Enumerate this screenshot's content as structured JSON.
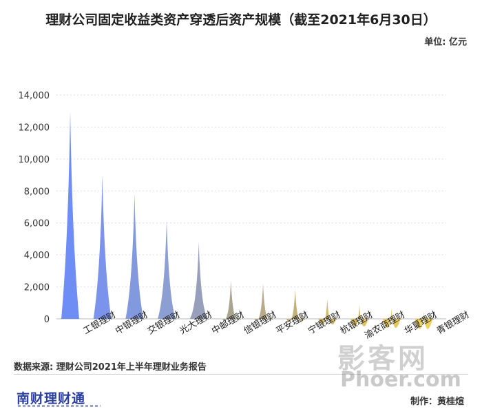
{
  "header": {
    "title": "理财公司固定收益类资产穿透后资产规模（截至2021年6月30日）",
    "unit": "单位: 亿元"
  },
  "footer": {
    "source": "数据来源: 理财公司2021年上半年理财业务报告",
    "logo": "南财理财通",
    "credit": "制作：黄桂煊"
  },
  "watermark": {
    "line1": "影客网",
    "line2": "Phoer.com"
  },
  "chart_data": {
    "type": "bar",
    "title": "理财公司固定收益类资产穿透后资产规模（截至2021年6月30日）",
    "ylabel": "单位: 亿元",
    "ylim": [
      0,
      14000
    ],
    "yticks": [
      "14,000",
      "12,000",
      "10,000",
      "8,000",
      "6,000",
      "4,000",
      "2,000",
      "0"
    ],
    "ytick_values": [
      14000,
      12000,
      10000,
      8000,
      6000,
      4000,
      2000,
      0
    ],
    "grid": true,
    "categories": [
      "工银理财",
      "中银理财",
      "交银理财",
      "光大理财",
      "中邮理财",
      "信银理财",
      "平安理财",
      "宁银理财",
      "杭银理财",
      "渝农商理财",
      "华夏理财",
      "青银理财"
    ],
    "values": [
      13000,
      9000,
      7800,
      6200,
      4800,
      2400,
      2200,
      1850,
      1250,
      900,
      650,
      480
    ],
    "colors": [
      "#6f8ef5",
      "#7b93ea",
      "#8399de",
      "#8d9fd2",
      "#989fbb",
      "#aaa390",
      "#b9ab8a",
      "#c4b079",
      "#d1b96c",
      "#dcc265",
      "#e6c95e",
      "#efd25a"
    ]
  }
}
